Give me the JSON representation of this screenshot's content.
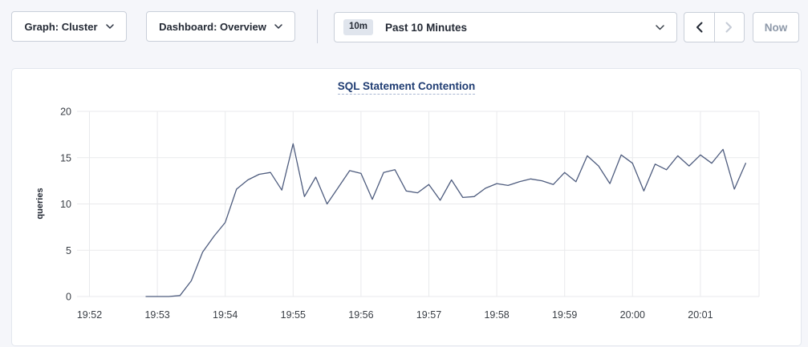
{
  "toolbar": {
    "graph_dropdown": {
      "label": "Graph: Cluster"
    },
    "dashboard_dropdown": {
      "label": "Dashboard: Overview"
    },
    "time_window": {
      "badge": "10m",
      "label": "Past 10 Minutes"
    },
    "now_button": {
      "label": "Now"
    }
  },
  "chart": {
    "title": "SQL Statement Contention",
    "ylabel": "queries",
    "colors": {
      "title": "#1f3c72",
      "grid": "#e9eaec",
      "tick_text": "#383d44",
      "axis_text": "#242a35"
    }
  },
  "chart_data": {
    "type": "line",
    "title": "SQL Statement Contention",
    "xlabel": "",
    "ylabel": "queries",
    "ylim": [
      0,
      20
    ],
    "y_ticks": [
      0,
      5,
      10,
      15,
      20
    ],
    "x_tick_labels": [
      "19:52",
      "19:53",
      "19:54",
      "19:55",
      "19:56",
      "19:57",
      "19:58",
      "19:59",
      "20:00",
      "20:01"
    ],
    "x_start": "19:52:50",
    "x_interval_seconds": 10,
    "grid": true,
    "legend": "none",
    "series": [
      {
        "name": "SQL Statement Contention",
        "color": "#4e5c7e",
        "values": [
          0,
          0,
          0,
          0.1,
          1.7,
          4.8,
          6.5,
          8.0,
          11.6,
          12.6,
          13.2,
          13.4,
          11.5,
          16.5,
          10.8,
          12.9,
          10.0,
          11.8,
          13.6,
          13.3,
          10.5,
          13.4,
          13.7,
          11.4,
          11.2,
          12.1,
          10.4,
          12.6,
          10.7,
          10.8,
          11.7,
          12.2,
          12.0,
          12.4,
          12.7,
          12.5,
          12.1,
          13.4,
          12.4,
          15.2,
          14.1,
          12.2,
          15.3,
          14.4,
          11.4,
          14.3,
          13.7,
          15.2,
          14.1,
          15.3,
          14.4,
          15.9,
          11.6,
          14.4
        ]
      }
    ]
  }
}
